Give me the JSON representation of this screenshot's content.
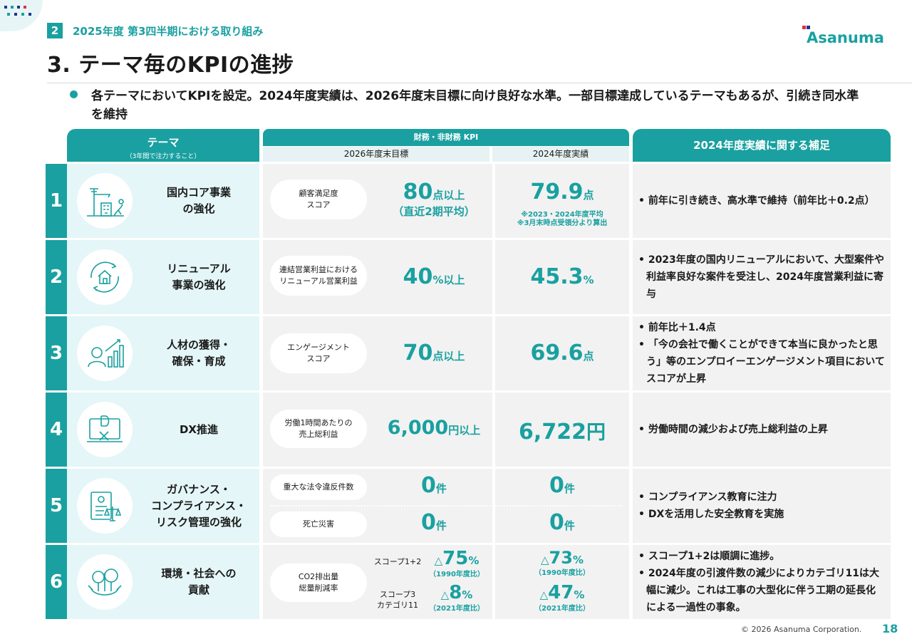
{
  "colors": {
    "accent": "#1aa0a0",
    "theme_bg": "#e4f6f7",
    "cell_bg": "#f2f2f2"
  },
  "header": {
    "section_number": "2",
    "section_title": "2025年度 第3四半期における取り組み",
    "page_title": "3. テーマ毎のKPIの進捗",
    "logo_text": "Asanuma"
  },
  "lead": {
    "text": "各テーマにおいてKPIを設定。2024年度実績は、2026年度末目標に向け良好な水準。一部目標達成しているテーマもあるが、引続き同水準を維持"
  },
  "table": {
    "col_theme": "テーマ",
    "col_theme_sub": "（3年間で注力すること）",
    "col_kpi": "財務・非財務 KPI",
    "col_target": "2026年度末目標",
    "col_actual": "2024年度実績",
    "col_note": "2024年度実績に関する補足"
  },
  "rows": [
    {
      "num": "1",
      "theme": "国内コア事業\nの強化",
      "icon": "construction-icon",
      "kpi": "顧客満足度\nスコア",
      "target_n": "80",
      "target_u": "点以上",
      "target_sub": "（直近2期平均）",
      "actual_n": "79.9",
      "actual_u": "点",
      "actual_note": "※2023・2024年度平均\n※3月末時点受領分より算出",
      "notes": [
        "• 前年に引き続き、高水準で維持（前年比＋0.2点）"
      ]
    },
    {
      "num": "2",
      "theme": "リニューアル\n事業の強化",
      "icon": "house-renewal-icon",
      "kpi": "連結営業利益における\nリニューアル営業利益",
      "target_n": "40",
      "target_u": "%以上",
      "actual_n": "45.3",
      "actual_u": "%",
      "notes": [
        "• 2023年度の国内リニューアルにおいて、大型案件や利益率良好な案件を受注し、2024年度営業利益に寄与"
      ]
    },
    {
      "num": "3",
      "theme": "人材の獲得・\n確保・育成",
      "icon": "person-growth-icon",
      "kpi": "エンゲージメント\nスコア",
      "target_n": "70",
      "target_u": "点以上",
      "actual_n": "69.6",
      "actual_u": "点",
      "notes": [
        "• 前年比＋1.4点",
        "• 「今の会社で働くことができて本当に良かったと思う」等のエンプロイーエンゲージメント項目においてスコアが上昇"
      ]
    },
    {
      "num": "4",
      "theme": "DX推進",
      "icon": "dx-monitor-icon",
      "kpi": "労働1時間あたりの\n売上総利益",
      "target_n": "6,000",
      "target_u": "円以上",
      "actual_n": "6,722",
      "actual_u": "円",
      "notes": [
        "• 労働時間の減少および売上総利益の上昇"
      ]
    },
    {
      "num": "5",
      "theme": "ガバナンス・\nコンプライアンス・\nリスク管理の強化",
      "icon": "compliance-icon",
      "kpi_a": "重大な法令違反件数",
      "kpi_b": "死亡災害",
      "target_a_n": "0",
      "target_a_u": "件",
      "target_b_n": "0",
      "target_b_u": "件",
      "actual_a_n": "0",
      "actual_a_u": "件",
      "actual_b_n": "0",
      "actual_b_u": "件",
      "notes": [
        "• コンプライアンス教育に注力",
        "• DXを活用した安全教育を実施"
      ]
    },
    {
      "num": "6",
      "theme": "環境・社会への\n貢献",
      "icon": "eco-tree-icon",
      "kpi": "CO2排出量\n総量削減率",
      "scope_a": "スコープ1+2",
      "scope_b": "スコープ3\nカテゴリ11",
      "target_a_p": "△",
      "target_a_n": "75",
      "target_a_u": "%",
      "target_a_sub": "（1990年度比）",
      "target_b_p": "△",
      "target_b_n": "8",
      "target_b_u": "%",
      "target_b_sub": "（2021年度比）",
      "actual_a_p": "△",
      "actual_a_n": "73",
      "actual_a_u": "%",
      "actual_a_sub": "（1990年度比）",
      "actual_b_p": "△",
      "actual_b_n": "47",
      "actual_b_u": "%",
      "actual_b_sub": "（2021年度比）",
      "notes": [
        "• スコープ1+2は順調に進捗。",
        "• 2024年度の引渡件数の減少によりカテゴリ11は大幅に減少。これは工事の大型化に伴う工期の延長化による一過性の事象。"
      ]
    }
  ],
  "footer": {
    "copyright": "© 2026 Asanuma Corporation.",
    "page": "18"
  }
}
